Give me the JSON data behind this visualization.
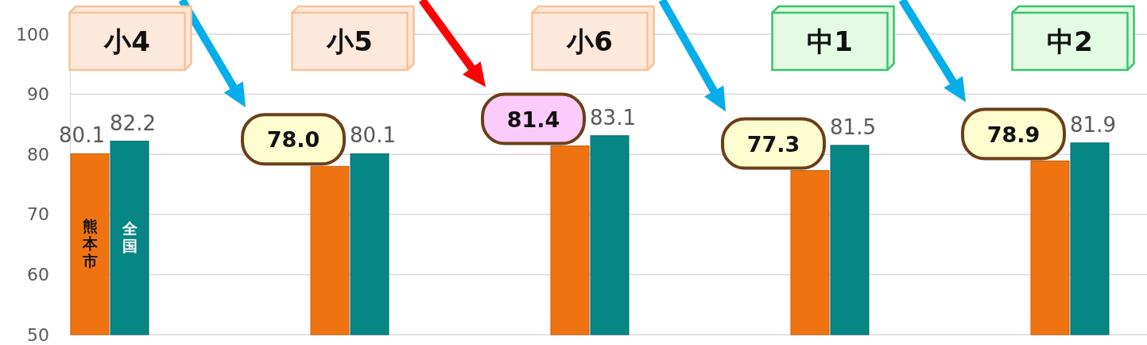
{
  "chart_data": {
    "type": "bar",
    "categories": [
      "小4",
      "小5",
      "小6",
      "中1",
      "中2"
    ],
    "series": [
      {
        "name": "熊本市",
        "color": "#ef7411",
        "values": [
          80.1,
          78.0,
          81.4,
          77.3,
          78.9
        ],
        "value_labels": [
          "80.1",
          "78.0",
          "81.4",
          "77.3",
          "78.9"
        ]
      },
      {
        "name": "全国",
        "color": "#068784",
        "values": [
          82.2,
          80.1,
          83.1,
          81.5,
          81.9
        ],
        "value_labels": [
          "82.2",
          "80.1",
          "83.1",
          "81.5",
          "81.9"
        ]
      }
    ],
    "ylim": [
      50,
      100
    ],
    "yticks": [
      50,
      60,
      70,
      80,
      90,
      100
    ],
    "grid": "y"
  }
}
